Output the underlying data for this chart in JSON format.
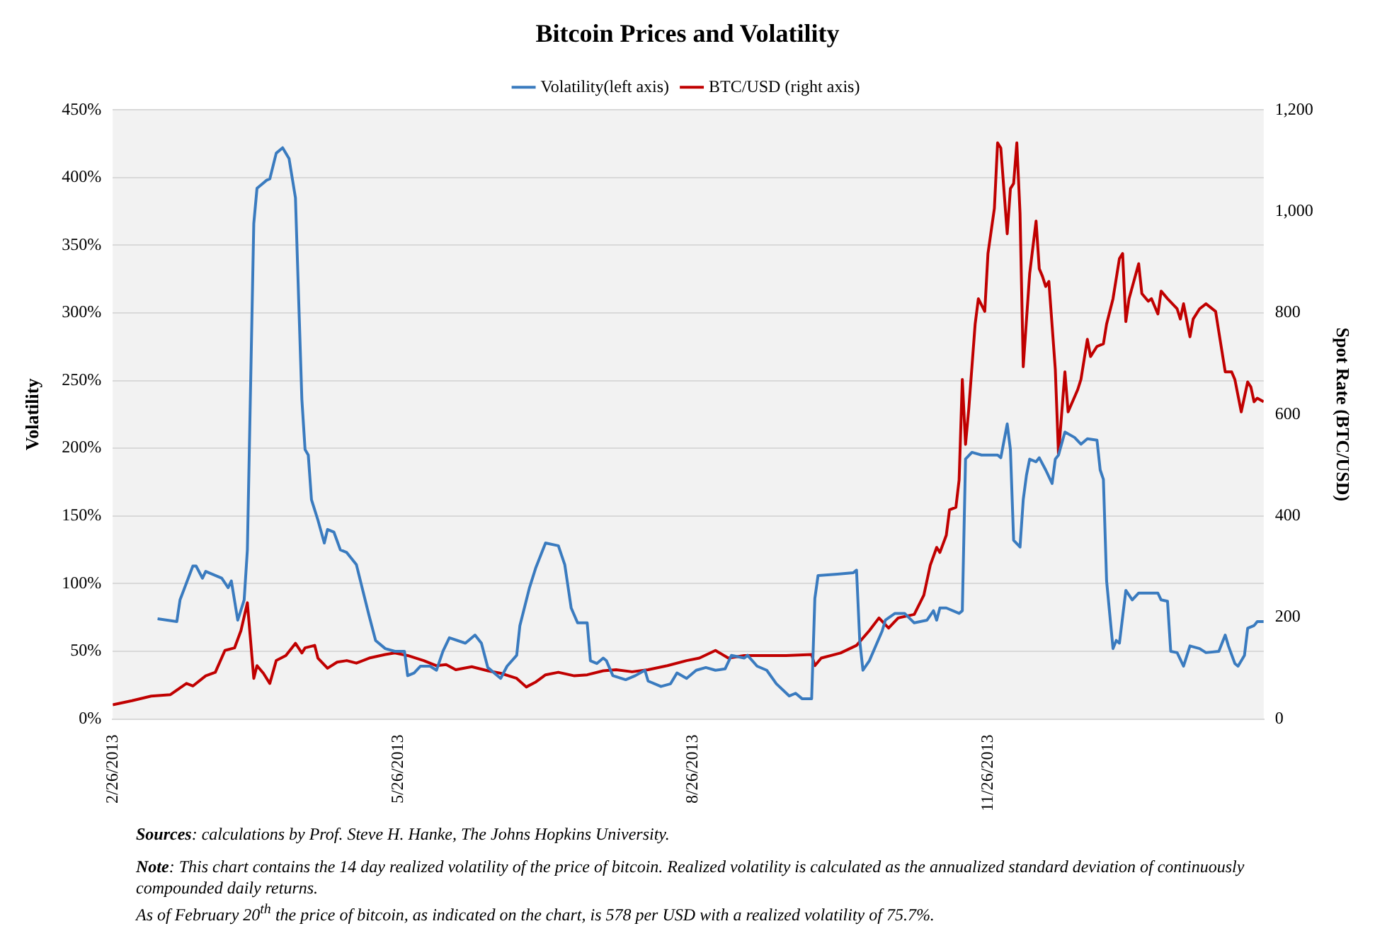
{
  "chart_data": {
    "type": "line",
    "title": "Bitcoin Prices and Volatility",
    "ylabel": "Volatility",
    "y2label": "Spot Rate (BTC/USD)",
    "xlim": [
      "2013-02-26",
      "2014-02-20"
    ],
    "xticks": [
      {
        "value": "2013-02-26",
        "label": "2/26/2013"
      },
      {
        "value": "2013-05-26",
        "label": "5/26/2013"
      },
      {
        "value": "2013-08-26",
        "label": "8/26/2013"
      },
      {
        "value": "2013-11-26",
        "label": "11/26/2013"
      }
    ],
    "ylim": [
      0,
      450
    ],
    "yticks": [
      {
        "value": 0,
        "label": "0%"
      },
      {
        "value": 50,
        "label": "50%"
      },
      {
        "value": 100,
        "label": "100%"
      },
      {
        "value": 150,
        "label": "150%"
      },
      {
        "value": 200,
        "label": "200%"
      },
      {
        "value": 250,
        "label": "250%"
      },
      {
        "value": 300,
        "label": "300%"
      },
      {
        "value": 350,
        "label": "350%"
      },
      {
        "value": 400,
        "label": "400%"
      },
      {
        "value": 450,
        "label": "450%"
      }
    ],
    "y2lim": [
      0,
      1200
    ],
    "y2ticks": [
      0,
      200,
      400,
      600,
      800,
      {
        "value": 1000,
        "label": "1,000"
      },
      {
        "value": 1200,
        "label": "1,200"
      }
    ],
    "grid": "y",
    "legend": "top",
    "marker": "none",
    "line_style": "solid",
    "series": [
      {
        "name": "Volatility(left axis)",
        "color": "#3a7bbf",
        "x": [
          "2013-03-12",
          "2013-03-18",
          "2013-03-19",
          "2013-03-23",
          "2013-03-24",
          "2013-03-26",
          "2013-03-27",
          "2013-04-01",
          "2013-04-03",
          "2013-04-04",
          "2013-04-06",
          "2013-04-08",
          "2013-04-09",
          "2013-04-11",
          "2013-04-12",
          "2013-04-15",
          "2013-04-16",
          "2013-04-18",
          "2013-04-20",
          "2013-04-22",
          "2013-04-24",
          "2013-04-25",
          "2013-04-26",
          "2013-04-27",
          "2013-04-28",
          "2013-04-29",
          "2013-05-01",
          "2013-05-03",
          "2013-05-04",
          "2013-05-06",
          "2013-05-08",
          "2013-05-10",
          "2013-05-13",
          "2013-05-15",
          "2013-05-17",
          "2013-05-19",
          "2013-05-22",
          "2013-05-25",
          "2013-05-28",
          "2013-05-29",
          "2013-05-31",
          "2013-06-02",
          "2013-06-05",
          "2013-06-07",
          "2013-06-09",
          "2013-06-11",
          "2013-06-16",
          "2013-06-19",
          "2013-06-21",
          "2013-06-23",
          "2013-06-27",
          "2013-06-29",
          "2013-07-02",
          "2013-07-03",
          "2013-07-06",
          "2013-07-08",
          "2013-07-11",
          "2013-07-15",
          "2013-07-17",
          "2013-07-19",
          "2013-07-21",
          "2013-07-24",
          "2013-07-25",
          "2013-07-27",
          "2013-07-29",
          "2013-07-30",
          "2013-08-01",
          "2013-08-05",
          "2013-08-08",
          "2013-08-11",
          "2013-08-12",
          "2013-08-16",
          "2013-08-19",
          "2013-08-21",
          "2013-08-24",
          "2013-08-27",
          "2013-08-30",
          "2013-09-02",
          "2013-09-05",
          "2013-09-07",
          "2013-09-11",
          "2013-09-12",
          "2013-09-15",
          "2013-09-18",
          "2013-09-21",
          "2013-09-25",
          "2013-09-27",
          "2013-09-29",
          "2013-10-02",
          "2013-10-03",
          "2013-10-04",
          "2013-10-10",
          "2013-10-15",
          "2013-10-16",
          "2013-10-17",
          "2013-10-18",
          "2013-10-20",
          "2013-10-22",
          "2013-10-24",
          "2013-10-25",
          "2013-10-28",
          "2013-10-31",
          "2013-11-03",
          "2013-11-07",
          "2013-11-09",
          "2013-11-10",
          "2013-11-11",
          "2013-11-13",
          "2013-11-17",
          "2013-11-18",
          "2013-11-19",
          "2013-11-21",
          "2013-11-24",
          "2013-11-27",
          "2013-11-29",
          "2013-11-30",
          "2013-12-02",
          "2013-12-03",
          "2013-12-04",
          "2013-12-06",
          "2013-12-07",
          "2013-12-08",
          "2013-12-09",
          "2013-12-11",
          "2013-12-12",
          "2013-12-14",
          "2013-12-16",
          "2013-12-17",
          "2013-12-18",
          "2013-12-20",
          "2013-12-23",
          "2013-12-25",
          "2013-12-27",
          "2013-12-30",
          "2013-12-31",
          "2014-01-01",
          "2014-01-02",
          "2014-01-04",
          "2014-01-05",
          "2014-01-06",
          "2014-01-08",
          "2014-01-10",
          "2014-01-12",
          "2014-01-18",
          "2014-01-19",
          "2014-01-21",
          "2014-01-22",
          "2014-01-24",
          "2014-01-26",
          "2014-01-28",
          "2014-01-31",
          "2014-02-02",
          "2014-02-06",
          "2014-02-08",
          "2014-02-09",
          "2014-02-11",
          "2014-02-12",
          "2014-02-14",
          "2014-02-15",
          "2014-02-17",
          "2014-02-18",
          "2014-02-20"
        ],
        "values": [
          74,
          72,
          88,
          113,
          113,
          104,
          109,
          104,
          97,
          102,
          73,
          88,
          125,
          366,
          392,
          398,
          399,
          418,
          422,
          414,
          385,
          310,
          236,
          199,
          195,
          162,
          147,
          130,
          140,
          138,
          125,
          123,
          114,
          95,
          76,
          58,
          52,
          50,
          50,
          32,
          34,
          39,
          39,
          36,
          50,
          60,
          56,
          62,
          56,
          38,
          30,
          39,
          47,
          69,
          97,
          112,
          130,
          128,
          114,
          82,
          71,
          71,
          43,
          41,
          45,
          43,
          32,
          29,
          32,
          36,
          28,
          24,
          26,
          34,
          30,
          36,
          38,
          36,
          37,
          47,
          45,
          47,
          39,
          36,
          26,
          17,
          19,
          15,
          15,
          89,
          106,
          107,
          108,
          110,
          58,
          36,
          43,
          54,
          65,
          73,
          78,
          78,
          71,
          73,
          80,
          73,
          82,
          82,
          78,
          80,
          192,
          197,
          195,
          195,
          195,
          193,
          218,
          199,
          132,
          127,
          162,
          180,
          192,
          190,
          193,
          184,
          174,
          192,
          195,
          212,
          208,
          203,
          207,
          206,
          184,
          177,
          102,
          52,
          58,
          56,
          95,
          88,
          93,
          93,
          88,
          87,
          50,
          49,
          39,
          54,
          52,
          49,
          50,
          62,
          54,
          41,
          39,
          47,
          67,
          69,
          72,
          72
        ]
      },
      {
        "name": "BTC/USD (right axis)",
        "color": "#c00000",
        "axis": "y2",
        "x": [
          "2013-02-26",
          "2013-03-04",
          "2013-03-10",
          "2013-03-16",
          "2013-03-21",
          "2013-03-23",
          "2013-03-27",
          "2013-03-30",
          "2013-04-02",
          "2013-04-05",
          "2013-04-07",
          "2013-04-09",
          "2013-04-11",
          "2013-04-12",
          "2013-04-14",
          "2013-04-16",
          "2013-04-18",
          "2013-04-21",
          "2013-04-24",
          "2013-04-26",
          "2013-04-27",
          "2013-04-30",
          "2013-05-01",
          "2013-05-04",
          "2013-05-07",
          "2013-05-10",
          "2013-05-13",
          "2013-05-17",
          "2013-05-22",
          "2013-05-25",
          "2013-05-29",
          "2013-06-03",
          "2013-06-07",
          "2013-06-10",
          "2013-06-13",
          "2013-06-18",
          "2013-06-23",
          "2013-06-27",
          "2013-07-02",
          "2013-07-05",
          "2013-07-08",
          "2013-07-11",
          "2013-07-15",
          "2013-07-20",
          "2013-07-24",
          "2013-07-29",
          "2013-08-02",
          "2013-08-07",
          "2013-08-12",
          "2013-08-18",
          "2013-08-24",
          "2013-08-28",
          "2013-09-02",
          "2013-09-06",
          "2013-09-11",
          "2013-09-15",
          "2013-09-20",
          "2013-09-24",
          "2013-10-02",
          "2013-10-03",
          "2013-10-05",
          "2013-10-11",
          "2013-10-16",
          "2013-10-20",
          "2013-10-23",
          "2013-10-26",
          "2013-10-29",
          "2013-11-03",
          "2013-11-06",
          "2013-11-08",
          "2013-11-10",
          "2013-11-11",
          "2013-11-13",
          "2013-11-14",
          "2013-11-16",
          "2013-11-17",
          "2013-11-18",
          "2013-11-19",
          "2013-11-20",
          "2013-11-22",
          "2013-11-23",
          "2013-11-25",
          "2013-11-26",
          "2013-11-28",
          "2013-11-29",
          "2013-11-30",
          "2013-12-02",
          "2013-12-03",
          "2013-12-04",
          "2013-12-05",
          "2013-12-06",
          "2013-12-07",
          "2013-12-09",
          "2013-12-11",
          "2013-12-12",
          "2013-12-13",
          "2013-12-14",
          "2013-12-15",
          "2013-12-17",
          "2013-12-18",
          "2013-12-20",
          "2013-12-21",
          "2013-12-24",
          "2013-12-25",
          "2013-12-27",
          "2013-12-28",
          "2013-12-30",
          "2014-01-01",
          "2014-01-02",
          "2014-01-04",
          "2014-01-06",
          "2014-01-07",
          "2014-01-08",
          "2014-01-09",
          "2014-01-12",
          "2014-01-13",
          "2014-01-15",
          "2014-01-16",
          "2014-01-18",
          "2014-01-19",
          "2014-01-21",
          "2014-01-24",
          "2014-01-25",
          "2014-01-26",
          "2014-01-28",
          "2014-01-29",
          "2014-01-31",
          "2014-02-02",
          "2014-02-05",
          "2014-02-06",
          "2014-02-08",
          "2014-02-10",
          "2014-02-11",
          "2014-02-13",
          "2014-02-15",
          "2014-02-16",
          "2014-02-17",
          "2014-02-18",
          "2014-02-20"
        ],
        "values": [
          28,
          36,
          45,
          48,
          70,
          65,
          85,
          92,
          135,
          140,
          174,
          229,
          80,
          105,
          90,
          70,
          115,
          125,
          149,
          130,
          140,
          145,
          120,
          100,
          112,
          115,
          110,
          120,
          127,
          130,
          125,
          115,
          105,
          107,
          97,
          103,
          95,
          90,
          80,
          63,
          73,
          87,
          92,
          85,
          87,
          95,
          97,
          93,
          97,
          105,
          115,
          120,
          135,
          120,
          125,
          125,
          125,
          125,
          127,
          105,
          120,
          130,
          145,
          174,
          199,
          179,
          199,
          206,
          244,
          303,
          338,
          328,
          362,
          412,
          417,
          471,
          669,
          541,
          610,
          778,
          828,
          803,
          917,
          1006,
          1135,
          1125,
          956,
          1045,
          1055,
          1135,
          996,
          694,
          877,
          981,
          887,
          872,
          852,
          862,
          689,
          521,
          684,
          605,
          649,
          669,
          748,
          714,
          734,
          739,
          778,
          828,
          907,
          917,
          783,
          828,
          897,
          838,
          823,
          828,
          798,
          843,
          828,
          808,
          788,
          818,
          753,
          788,
          808,
          818,
          803,
          763,
          684,
          684,
          669,
          605,
          664,
          654,
          625,
          632,
          625
        ]
      }
    ],
    "annotations": [
      "Sources: calculations by Prof. Steve H. Hanke, The Johns Hopkins University.",
      "Note: This chart contains the 14 day realized volatility of the price of bitcoin. Realized volatility is calculated as the annualized standard deviation of continuously compounded daily returns.",
      "As of February 20$^{th}$ the price of bitcoin, as indicated on the chart, is 578 per USD with a realized volatility of 75.7%."
    ]
  }
}
